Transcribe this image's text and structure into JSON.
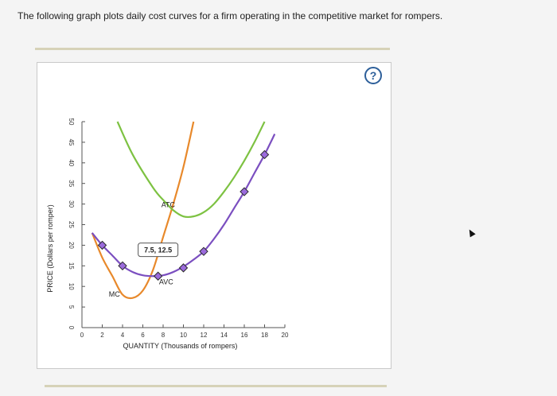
{
  "prompt": "The following graph plots daily cost curves for a firm operating in the competitive market for rompers.",
  "help_label": "?",
  "chart_data": {
    "type": "line",
    "xlabel": "QUANTITY (Thousands of rompers)",
    "ylabel": "PRICE (Dollars per romper)",
    "xlim": [
      0,
      20
    ],
    "ylim": [
      0,
      50
    ],
    "x_ticks": [
      0,
      2,
      4,
      6,
      8,
      10,
      12,
      14,
      16,
      18,
      20
    ],
    "y_ticks": [
      0,
      5,
      10,
      15,
      20,
      25,
      30,
      35,
      40,
      45,
      50
    ],
    "grid": false,
    "series": [
      {
        "name": "MC",
        "color": "#e8892b",
        "points": [
          [
            1,
            23
          ],
          [
            2,
            17
          ],
          [
            3,
            12.5
          ],
          [
            4,
            8
          ],
          [
            5,
            7.2
          ],
          [
            6,
            9
          ],
          [
            7,
            14
          ],
          [
            8,
            22
          ],
          [
            9,
            30
          ],
          [
            10,
            39
          ],
          [
            11,
            50
          ]
        ]
      },
      {
        "name": "ATC",
        "color": "#7dc242",
        "points": [
          [
            3.5,
            50
          ],
          [
            5,
            42
          ],
          [
            7,
            34
          ],
          [
            8,
            31
          ],
          [
            9,
            28.5
          ],
          [
            10,
            27
          ],
          [
            11,
            27
          ],
          [
            12,
            28
          ],
          [
            13,
            30
          ],
          [
            14,
            33
          ],
          [
            15,
            36.5
          ],
          [
            16,
            40.5
          ],
          [
            17,
            45
          ],
          [
            18,
            50
          ]
        ]
      },
      {
        "name": "AVC",
        "color": "#7b4fc0",
        "points": [
          [
            1,
            23
          ],
          [
            2,
            20
          ],
          [
            3,
            17.5
          ],
          [
            4,
            15
          ],
          [
            5,
            13.5
          ],
          [
            6,
            12.7
          ],
          [
            7,
            12.5
          ],
          [
            8,
            12.7
          ],
          [
            9,
            13.5
          ],
          [
            10,
            14.8
          ],
          [
            11,
            16.5
          ],
          [
            12,
            18.5
          ],
          [
            13,
            21.5
          ],
          [
            14,
            25
          ],
          [
            15,
            29
          ],
          [
            16,
            33
          ],
          [
            17,
            37.5
          ],
          [
            18,
            42
          ],
          [
            19,
            47
          ]
        ]
      }
    ],
    "markers": [
      {
        "x": 2,
        "y": 20
      },
      {
        "x": 4,
        "y": 15
      },
      {
        "x": 7.5,
        "y": 12.5
      },
      {
        "x": 10,
        "y": 14.5
      },
      {
        "x": 12,
        "y": 18.5
      },
      {
        "x": 16,
        "y": 33
      },
      {
        "x": 18,
        "y": 42
      }
    ],
    "curve_labels": [
      {
        "text": "MC",
        "x": 3.2,
        "y": 7.5
      },
      {
        "text": "ATC",
        "x": 8.5,
        "y": 29.2
      },
      {
        "text": "AVC",
        "x": 8.3,
        "y": 10.5
      }
    ],
    "tooltip": {
      "text": "7.5, 12.5",
      "x": 7.5,
      "y": 18.8
    }
  }
}
